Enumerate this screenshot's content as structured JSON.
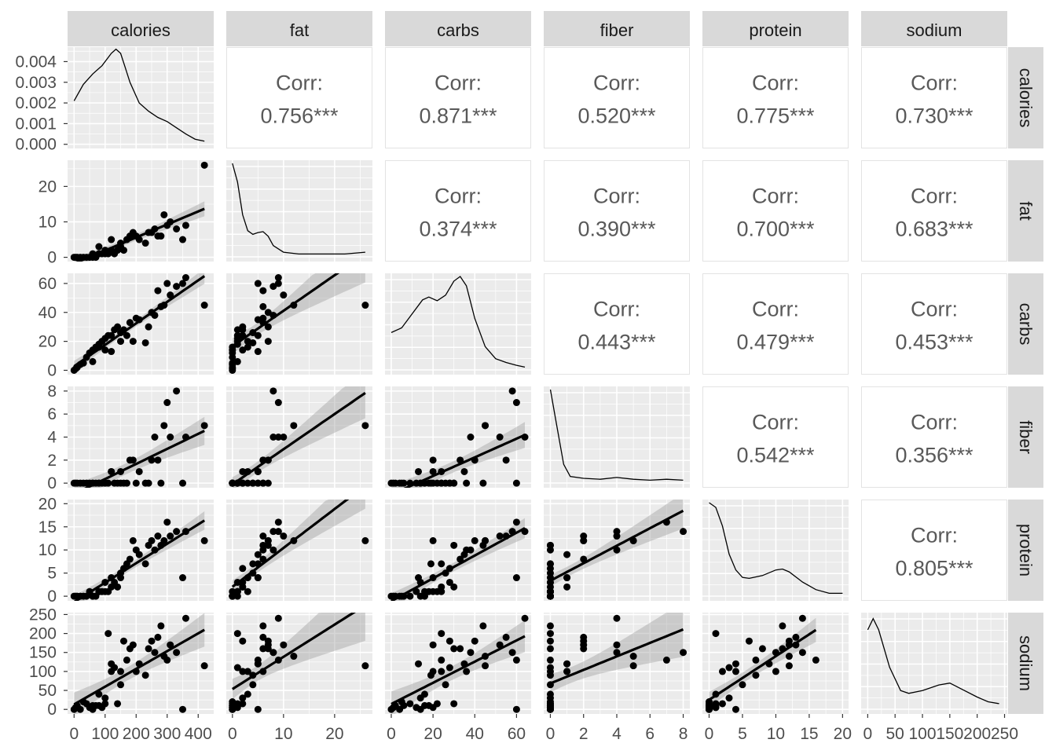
{
  "chart_data": {
    "type": "scatter-matrix",
    "variables": [
      "calories",
      "fat",
      "carbs",
      "fiber",
      "protein",
      "sodium"
    ],
    "axes": {
      "calories": {
        "lim": [
          -21,
          450
        ],
        "ticks": [
          0,
          100,
          200,
          300,
          400
        ]
      },
      "fat": {
        "lim": [
          -1.2,
          27.4
        ],
        "ticks": [
          0,
          10,
          20
        ]
      },
      "carbs": {
        "lim": [
          -3,
          67
        ],
        "ticks": [
          0,
          20,
          40,
          60
        ]
      },
      "fiber": {
        "lim": [
          -0.4,
          8.4
        ],
        "ticks": [
          0,
          2,
          4,
          6,
          8
        ]
      },
      "protein": {
        "lim": [
          -1,
          20.9
        ],
        "ticks": [
          0,
          5,
          10,
          15,
          20
        ]
      },
      "sodium": {
        "lim": [
          -12,
          255
        ],
        "ticks": [
          0,
          50,
          100,
          150,
          200,
          250
        ]
      }
    },
    "calories_density_axis": {
      "lim": [
        -0.0002,
        0.0047
      ],
      "ticks": [
        "0.000",
        "0.001",
        "0.002",
        "0.003",
        "0.004"
      ],
      "values": [
        0,
        0.001,
        0.002,
        0.003,
        0.004
      ]
    },
    "correlations": [
      {
        "row": "fat",
        "col": "calories",
        "label": "Corr:",
        "value": "0.756***"
      },
      {
        "row": "carbs",
        "col": "calories",
        "label": "Corr:",
        "value": "0.871***"
      },
      {
        "row": "fiber",
        "col": "calories",
        "label": "Corr:",
        "value": "0.520***"
      },
      {
        "row": "protein",
        "col": "calories",
        "label": "Corr:",
        "value": "0.775***"
      },
      {
        "row": "sodium",
        "col": "calories",
        "label": "Corr:",
        "value": "0.730***"
      },
      {
        "row": "carbs",
        "col": "fat",
        "label": "Corr:",
        "value": "0.374***"
      },
      {
        "row": "fiber",
        "col": "fat",
        "label": "Corr:",
        "value": "0.390***"
      },
      {
        "row": "protein",
        "col": "fat",
        "label": "Corr:",
        "value": "0.700***"
      },
      {
        "row": "sodium",
        "col": "fat",
        "label": "Corr:",
        "value": "0.683***"
      },
      {
        "row": "fiber",
        "col": "carbs",
        "label": "Corr:",
        "value": "0.443***"
      },
      {
        "row": "protein",
        "col": "carbs",
        "label": "Corr:",
        "value": "0.479***"
      },
      {
        "row": "sodium",
        "col": "carbs",
        "label": "Corr:",
        "value": "0.453***"
      },
      {
        "row": "protein",
        "col": "fiber",
        "label": "Corr:",
        "value": "0.542***"
      },
      {
        "row": "sodium",
        "col": "fiber",
        "label": "Corr:",
        "value": "0.356***"
      },
      {
        "row": "sodium",
        "col": "protein",
        "label": "Corr:",
        "value": "0.805***"
      }
    ],
    "densities": {
      "calories": [
        [
          0,
          0.0021
        ],
        [
          30,
          0.0029
        ],
        [
          60,
          0.0034
        ],
        [
          90,
          0.0038
        ],
        [
          120,
          0.0044
        ],
        [
          135,
          0.0046
        ],
        [
          150,
          0.0044
        ],
        [
          165,
          0.0037
        ],
        [
          180,
          0.003
        ],
        [
          210,
          0.002
        ],
        [
          240,
          0.0016
        ],
        [
          270,
          0.0013
        ],
        [
          300,
          0.0011
        ],
        [
          330,
          0.0008
        ],
        [
          360,
          0.0005
        ],
        [
          390,
          0.00025
        ],
        [
          420,
          0.00015
        ]
      ],
      "fat": [
        [
          0,
          1
        ],
        [
          1,
          0.8
        ],
        [
          2,
          0.45
        ],
        [
          3,
          0.28
        ],
        [
          4,
          0.24
        ],
        [
          5,
          0.26
        ],
        [
          6,
          0.27
        ],
        [
          7,
          0.22
        ],
        [
          8,
          0.12
        ],
        [
          10,
          0.05
        ],
        [
          13,
          0.03
        ],
        [
          18,
          0.03
        ],
        [
          22,
          0.03
        ],
        [
          26,
          0.05
        ]
      ],
      "carbs": [
        [
          0,
          0.4
        ],
        [
          5,
          0.45
        ],
        [
          10,
          0.6
        ],
        [
          15,
          0.75
        ],
        [
          18,
          0.78
        ],
        [
          22,
          0.74
        ],
        [
          26,
          0.8
        ],
        [
          30,
          0.95
        ],
        [
          33,
          1
        ],
        [
          36,
          0.9
        ],
        [
          40,
          0.55
        ],
        [
          45,
          0.25
        ],
        [
          50,
          0.12
        ],
        [
          55,
          0.08
        ],
        [
          60,
          0.05
        ],
        [
          64,
          0.03
        ]
      ],
      "fiber": [
        [
          0,
          1
        ],
        [
          0.3,
          0.7
        ],
        [
          0.8,
          0.2
        ],
        [
          1.2,
          0.07
        ],
        [
          2,
          0.05
        ],
        [
          3,
          0.04
        ],
        [
          4,
          0.06
        ],
        [
          5,
          0.04
        ],
        [
          6,
          0.03
        ],
        [
          7,
          0.04
        ],
        [
          8,
          0.03
        ]
      ],
      "protein": [
        [
          0,
          1
        ],
        [
          1,
          0.95
        ],
        [
          2,
          0.75
        ],
        [
          3,
          0.45
        ],
        [
          4,
          0.28
        ],
        [
          5,
          0.2
        ],
        [
          6,
          0.19
        ],
        [
          8,
          0.22
        ],
        [
          10,
          0.28
        ],
        [
          11,
          0.29
        ],
        [
          12,
          0.26
        ],
        [
          14,
          0.15
        ],
        [
          16,
          0.07
        ],
        [
          18,
          0.03
        ],
        [
          20,
          0.03
        ]
      ],
      "sodium": [
        [
          0,
          0.85
        ],
        [
          10,
          0.97
        ],
        [
          20,
          0.85
        ],
        [
          40,
          0.45
        ],
        [
          60,
          0.2
        ],
        [
          75,
          0.17
        ],
        [
          100,
          0.2
        ],
        [
          130,
          0.26
        ],
        [
          150,
          0.28
        ],
        [
          170,
          0.22
        ],
        [
          200,
          0.13
        ],
        [
          220,
          0.08
        ],
        [
          240,
          0.06
        ]
      ]
    },
    "rows": [
      [
        0,
        0,
        0,
        0,
        0,
        0
      ],
      [
        5,
        0,
        1,
        0,
        0,
        5
      ],
      [
        10,
        0,
        2,
        0,
        0,
        10
      ],
      [
        20,
        0,
        4,
        0,
        0,
        0
      ],
      [
        40,
        0,
        9,
        0,
        0,
        15
      ],
      [
        50,
        0,
        12,
        0,
        1,
        5
      ],
      [
        60,
        0,
        14,
        0,
        0,
        0
      ],
      [
        70,
        0,
        16,
        0,
        0,
        10
      ],
      [
        80,
        1,
        18,
        0,
        1,
        10
      ],
      [
        90,
        1,
        20,
        0,
        1,
        5
      ],
      [
        100,
        1,
        22,
        0,
        1,
        15
      ],
      [
        110,
        1,
        24,
        0,
        1,
        200
      ],
      [
        120,
        2,
        24,
        1,
        2,
        100
      ],
      [
        130,
        1,
        28,
        0,
        3,
        110
      ],
      [
        140,
        2,
        30,
        0,
        2,
        15
      ],
      [
        150,
        4,
        26,
        0,
        5,
        65
      ],
      [
        120,
        5,
        13,
        1,
        4,
        120
      ],
      [
        80,
        3,
        16,
        0,
        1,
        40
      ],
      [
        180,
        6,
        33,
        2,
        8,
        160
      ],
      [
        190,
        7,
        20,
        2,
        12,
        170
      ],
      [
        200,
        6,
        36,
        0,
        10,
        100
      ],
      [
        210,
        5,
        35,
        1,
        9,
        120
      ],
      [
        230,
        4,
        19,
        0,
        7,
        90
      ],
      [
        250,
        7,
        40,
        2,
        12,
        180
      ],
      [
        260,
        8,
        38,
        4,
        10,
        150
      ],
      [
        280,
        6,
        44,
        0,
        11,
        220
      ],
      [
        300,
        9,
        60,
        7,
        16,
        130
      ],
      [
        310,
        10,
        52,
        4,
        13,
        170
      ],
      [
        330,
        8,
        58,
        8,
        14,
        150
      ],
      [
        290,
        12,
        45,
        5,
        12,
        140
      ],
      [
        350,
        5,
        60,
        0,
        4,
        0
      ],
      [
        360,
        9,
        64,
        4,
        14,
        240
      ],
      [
        420,
        26,
        45,
        5,
        12,
        115
      ],
      [
        170,
        5,
        24,
        0,
        7,
        130
      ],
      [
        160,
        2,
        28,
        0,
        6,
        180
      ],
      [
        100,
        2,
        14,
        0,
        3,
        30
      ],
      [
        60,
        1,
        6,
        0,
        0,
        10
      ],
      [
        30,
        0,
        5,
        0,
        0,
        20
      ],
      [
        240,
        7,
        30,
        0,
        11,
        160
      ],
      [
        270,
        6,
        55,
        2,
        13,
        190
      ],
      [
        150,
        3,
        20,
        1,
        4,
        100
      ]
    ]
  }
}
